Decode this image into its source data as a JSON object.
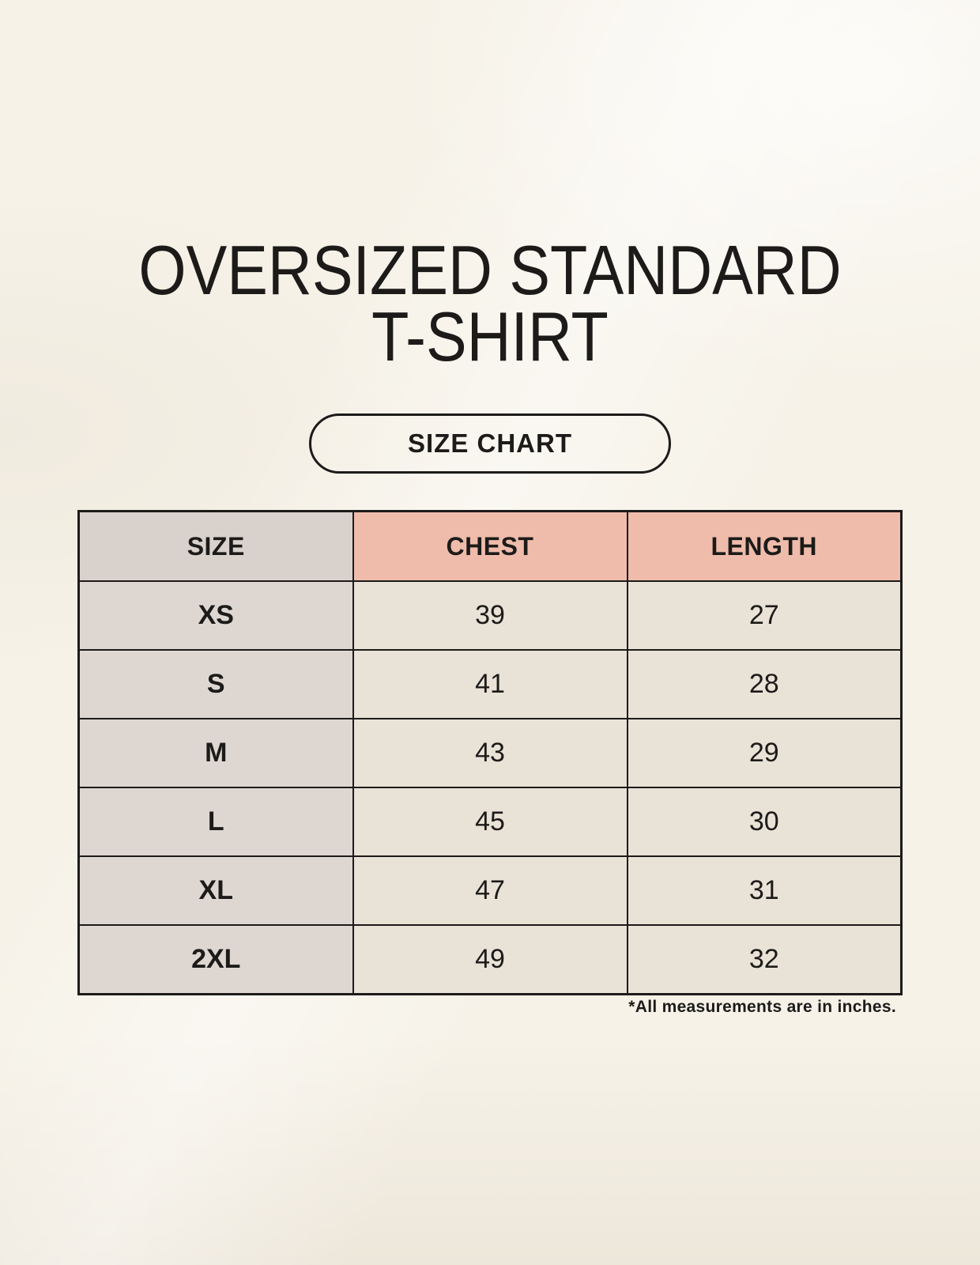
{
  "title": {
    "line1": "OVERSIZED STANDARD",
    "line2": "T-SHIRT"
  },
  "size_chart_button": {
    "label": "SIZE CHART"
  },
  "table": {
    "headers": [
      "SIZE",
      "CHEST",
      "LENGTH"
    ],
    "rows": [
      {
        "size": "XS",
        "chest": "39",
        "length": "27"
      },
      {
        "size": "S",
        "chest": "41",
        "length": "28"
      },
      {
        "size": "M",
        "chest": "43",
        "length": "29"
      },
      {
        "size": "L",
        "chest": "45",
        "length": "30"
      },
      {
        "size": "XL",
        "chest": "47",
        "length": "31"
      },
      {
        "size": "2XL",
        "chest": "49",
        "length": "32"
      }
    ]
  },
  "footnote": "*All measurements are in inches.",
  "colors": {
    "page_background": "#f6f2e8",
    "header_size_bg": "#d9d2cc",
    "header_measure_bg": "#efbcab",
    "size_column_bg": "#ded7d1",
    "value_cell_bg": "#e9e2d7",
    "border": "#1c1b19",
    "text": "#1c1b19"
  }
}
